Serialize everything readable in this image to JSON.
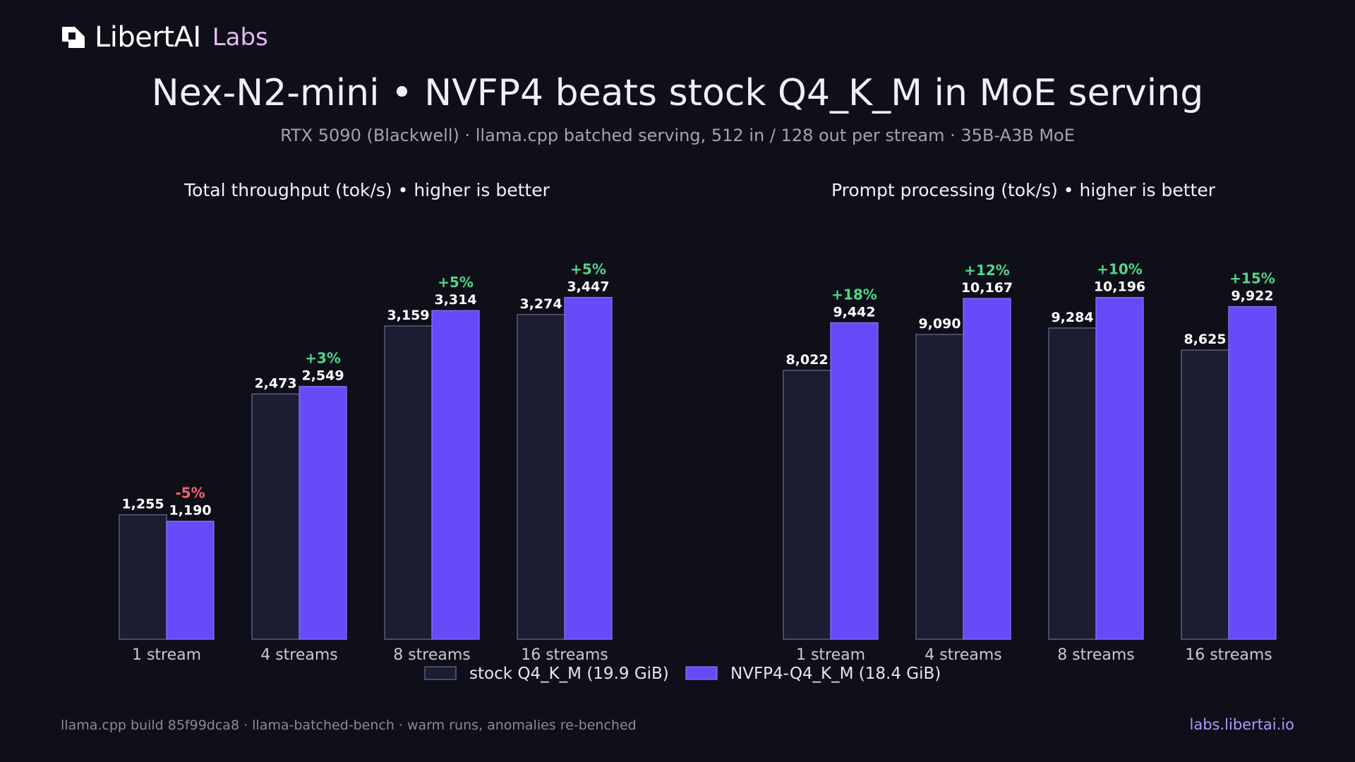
{
  "brand": {
    "name": "LibertAI",
    "sub": "Labs"
  },
  "title": "Nex-N2-mini • NVFP4 beats stock Q4_K_M in MoE serving",
  "subtitle": "RTX 5090 (Blackwell)  ·  llama.cpp batched serving, 512 in / 128 out per stream  ·  35B-A3B MoE",
  "footer": {
    "left": "llama.cpp build 85f99dca8 · llama-batched-bench · warm runs, anomalies re-benched",
    "right": "labs.libertai.io"
  },
  "colors": {
    "stock": "#1c1d32",
    "stock_stroke": "#6d6f8c",
    "nvfp4": "#674bf8",
    "nvfp4_stroke": "#8b76ff",
    "positive": "#4fd68a",
    "negative": "#f0646f",
    "label": "#ffffff",
    "tick": "#c9c9d4"
  },
  "legend": {
    "items": [
      {
        "name": "stock Q4_K_M (19.9 GiB)",
        "color": "#1c1d32"
      },
      {
        "name": "NVFP4-Q4_K_M (18.4 GiB)",
        "color": "#674bf8"
      }
    ]
  },
  "chart_data": [
    {
      "type": "bar",
      "title": "Total throughput (tok/s)",
      "note": "higher is better",
      "categories": [
        "1 stream",
        "4 streams",
        "8 streams",
        "16 streams"
      ],
      "series": [
        {
          "name": "stock Q4_K_M (19.9 GiB)",
          "values": [
            1255,
            2473,
            3159,
            3274
          ],
          "labels": [
            "1,255",
            "2,473",
            "3,159",
            "3,274"
          ]
        },
        {
          "name": "NVFP4-Q4_K_M (18.4 GiB)",
          "values": [
            1190,
            2549,
            3314,
            3447
          ],
          "labels": [
            "1,190",
            "2,549",
            "3,314",
            "3,447"
          ]
        }
      ],
      "deltas": [
        "-5%",
        "+3%",
        "+5%",
        "+5%"
      ],
      "ylim": [
        0,
        3600
      ],
      "grid": false,
      "legend": "bottom-center"
    },
    {
      "type": "bar",
      "title": "Prompt processing (tok/s)",
      "note": "higher is better",
      "categories": [
        "1 stream",
        "4 streams",
        "8 streams",
        "16 streams"
      ],
      "series": [
        {
          "name": "stock Q4_K_M (19.9 GiB)",
          "values": [
            8022,
            9090,
            9284,
            8625
          ],
          "labels": [
            "8,022",
            "9,090",
            "9,284",
            "8,625"
          ]
        },
        {
          "name": "NVFP4-Q4_K_M (18.4 GiB)",
          "values": [
            9442,
            10167,
            10196,
            9922
          ],
          "labels": [
            "9,442",
            "10,167",
            "10,196",
            "9,922"
          ]
        }
      ],
      "deltas": [
        "+18%",
        "+12%",
        "+10%",
        "+15%"
      ],
      "ylim": [
        0,
        10650
      ],
      "grid": false,
      "legend": "bottom-center"
    }
  ]
}
